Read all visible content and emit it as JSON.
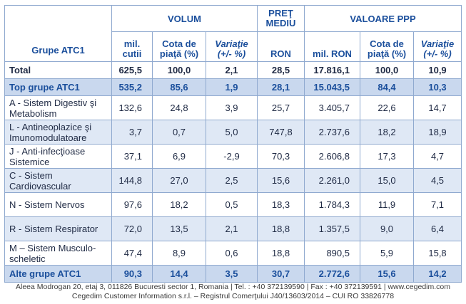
{
  "header": {
    "group_label": "Grupe ATC1",
    "volum": "VOLUM",
    "pret_line1": "PREŢ",
    "pret_line2": "MEDIU",
    "valoare": "VALOARE PPP",
    "sub": {
      "mil_cutii": "mil. cutii",
      "cota1": "Cota de piaţă (%)",
      "variatie1": "Variaţie (+/- %)",
      "ron": "RON",
      "mil_ron": "mil. RON",
      "cota2": "Cota de piaţă (%)",
      "variatie2": "Variaţie (+/- %)"
    }
  },
  "rows": [
    {
      "label": "Total",
      "vol": "625,5",
      "cota": "100,0",
      "var": "2,1",
      "pret": "28,5",
      "val": "17.816,1",
      "cota2": "100,0",
      "var2": "10,9"
    },
    {
      "label": "Top grupe ATC1",
      "vol": "535,2",
      "cota": "85,6",
      "var": "1,9",
      "pret": "28,1",
      "val": "15.043,5",
      "cota2": "84,4",
      "var2": "10,3"
    },
    {
      "label": "A - Sistem Digestiv şi Metabolism",
      "vol": "132,6",
      "cota": "24,8",
      "var": "3,9",
      "pret": "25,7",
      "val": "3.405,7",
      "cota2": "22,6",
      "var2": "14,7"
    },
    {
      "label": "L - Antineoplazice şi Imunomodulatoare",
      "vol": "3,7",
      "cota": "0,7",
      "var": "5,0",
      "pret": "747,8",
      "val": "2.737,6",
      "cota2": "18,2",
      "var2": "18,9"
    },
    {
      "label": "J - Anti-infecţioase Sistemice",
      "vol": "37,1",
      "cota": "6,9",
      "var": "-2,9",
      "pret": "70,3",
      "val": "2.606,8",
      "cota2": "17,3",
      "var2": "4,7"
    },
    {
      "label": "C - Sistem Cardiovascular",
      "vol": "144,8",
      "cota": "27,0",
      "var": "2,5",
      "pret": "15,6",
      "val": "2.261,0",
      "cota2": "15,0",
      "var2": "4,5"
    },
    {
      "label": "N - Sistem Nervos",
      "vol": "97,6",
      "cota": "18,2",
      "var": "0,5",
      "pret": "18,3",
      "val": "1.784,3",
      "cota2": "11,9",
      "var2": "7,1"
    },
    {
      "label": "R - Sistem Respirator",
      "vol": "72,0",
      "cota": "13,5",
      "var": "2,1",
      "pret": "18,8",
      "val": "1.357,5",
      "cota2": "9,0",
      "var2": "6,4"
    },
    {
      "label": "M – Sistem Musculo-scheletic",
      "vol": "47,4",
      "cota": "8,9",
      "var": "0,6",
      "pret": "18,8",
      "val": "890,5",
      "cota2": "5,9",
      "var2": "15,8"
    },
    {
      "label": "Alte grupe ATC1",
      "vol": "90,3",
      "cota": "14,4",
      "var": "3,5",
      "pret": "30,7",
      "val": "2.772,6",
      "cota2": "15,6",
      "var2": "14,2"
    }
  ],
  "footer": {
    "line1": "Aleea Modrogan 20, etaj 3, 011826 Bucuresti sector 1, Romania | Tel. : +40 372139590 | Fax : +40 372139591 | www.cegedim.com",
    "line2": "Cegedim Customer Information s.r.l. – Registrul Comerţului J40/13603/2014 – CUI RO 33826778"
  }
}
